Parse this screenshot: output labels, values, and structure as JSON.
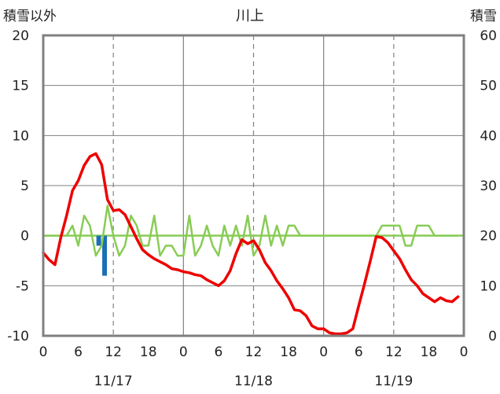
{
  "chart_data": {
    "type": "line",
    "title": "川上",
    "y_left_label": "積雪以外",
    "y_right_label": "積雪",
    "y_left_ticks": [
      "20",
      "15",
      "10",
      "5",
      "0",
      "-5",
      "-10"
    ],
    "y_right_ticks": [
      "60",
      "50",
      "40",
      "30",
      "20",
      "10",
      "0"
    ],
    "y_left_range": [
      -10,
      20
    ],
    "y_right_range": [
      0,
      60
    ],
    "x_hour_ticks": [
      "0",
      "6",
      "12",
      "18",
      "0",
      "6",
      "12",
      "18",
      "0",
      "6",
      "12",
      "18",
      "0"
    ],
    "x_range_hours": [
      0,
      72
    ],
    "date_labels": [
      "11/17",
      "11/18",
      "11/19"
    ],
    "grid": true,
    "colors": {
      "temperature": "#ee0000",
      "wind": "#88cc55",
      "precip": "#1a6fb5",
      "snow": "#7030a0",
      "frame": "#808080",
      "grid": "#808080",
      "zero_line": "#88cc55"
    },
    "series": [
      {
        "key": "temperature",
        "axis": "left",
        "x": [
          0,
          1,
          2,
          3,
          4,
          5,
          6,
          7,
          8,
          9,
          10,
          11,
          12,
          13,
          14,
          15,
          16,
          17,
          18,
          19,
          20,
          21,
          22,
          23,
          24,
          25,
          26,
          27,
          28,
          29,
          30,
          31,
          32,
          33,
          34,
          35,
          36,
          37,
          38,
          39,
          40,
          41,
          42,
          43,
          44,
          45,
          46,
          47,
          48,
          49,
          50,
          51,
          52,
          53,
          54,
          55,
          56,
          57,
          58,
          59,
          60,
          61,
          62,
          63,
          64,
          65,
          66,
          67,
          68,
          69,
          70,
          71
        ],
        "values": [
          -1.7,
          -2.4,
          -2.9,
          -0.2,
          2.0,
          4.5,
          5.5,
          7.0,
          7.9,
          8.2,
          7.1,
          3.6,
          2.5,
          2.6,
          2.1,
          0.9,
          -0.3,
          -1.4,
          -1.9,
          -2.3,
          -2.6,
          -2.9,
          -3.3,
          -3.4,
          -3.6,
          -3.7,
          -3.9,
          -4.0,
          -4.4,
          -4.7,
          -5.0,
          -4.5,
          -3.5,
          -1.8,
          -0.4,
          -0.8,
          -0.5,
          -1.4,
          -2.7,
          -3.5,
          -4.5,
          -5.3,
          -6.2,
          -7.4,
          -7.5,
          -8.0,
          -9.0,
          -9.3,
          -9.3,
          -9.7,
          -9.8,
          -9.8,
          -9.7,
          -9.3,
          -7.0,
          -4.8,
          -2.5,
          -0.1,
          -0.2,
          -0.7,
          -1.5,
          -2.3,
          -3.4,
          -4.4,
          -5.0,
          -5.8,
          -6.2,
          -6.6,
          -6.2,
          -6.5,
          -6.6,
          -6.1
        ]
      },
      {
        "key": "wind",
        "axis": "left",
        "x": [
          0,
          1,
          2,
          3,
          4,
          5,
          6,
          7,
          8,
          9,
          10,
          11,
          12,
          13,
          14,
          15,
          16,
          17,
          18,
          19,
          20,
          21,
          22,
          23,
          24,
          25,
          26,
          27,
          28,
          29,
          30,
          31,
          32,
          33,
          34,
          35,
          36,
          37,
          38,
          39,
          40,
          41,
          42,
          43,
          44,
          45,
          46,
          47,
          48,
          49,
          50,
          51,
          52,
          53,
          54,
          55,
          56,
          57,
          58,
          59,
          60,
          61,
          62,
          63,
          64,
          65,
          66,
          67,
          68,
          69,
          70,
          71
        ],
        "values": [
          0,
          0,
          0,
          0,
          0,
          1,
          -1,
          2,
          1,
          -2,
          -1,
          3,
          0,
          -2,
          -1,
          2,
          1,
          -1,
          -1,
          2,
          -2,
          -1,
          -1,
          -2,
          -2,
          2,
          -2,
          -1,
          1,
          -1,
          -2,
          1,
          -1,
          1,
          -1,
          2,
          -2,
          -1,
          2,
          -1,
          1,
          -1,
          1,
          1,
          0,
          0,
          0,
          0,
          0,
          0,
          0,
          0,
          0,
          0,
          0,
          0,
          0,
          0,
          1,
          1,
          1,
          1,
          -1,
          -1,
          1,
          1,
          1,
          0,
          0,
          0,
          0,
          0
        ]
      },
      {
        "key": "precip",
        "axis": "left",
        "type": "bar",
        "x": [
          9.5,
          10.5
        ],
        "values": [
          -1.0,
          -4.0
        ]
      },
      {
        "key": "snow",
        "axis": "right",
        "x": [
          0,
          72
        ],
        "values": [
          0,
          0
        ]
      }
    ]
  }
}
